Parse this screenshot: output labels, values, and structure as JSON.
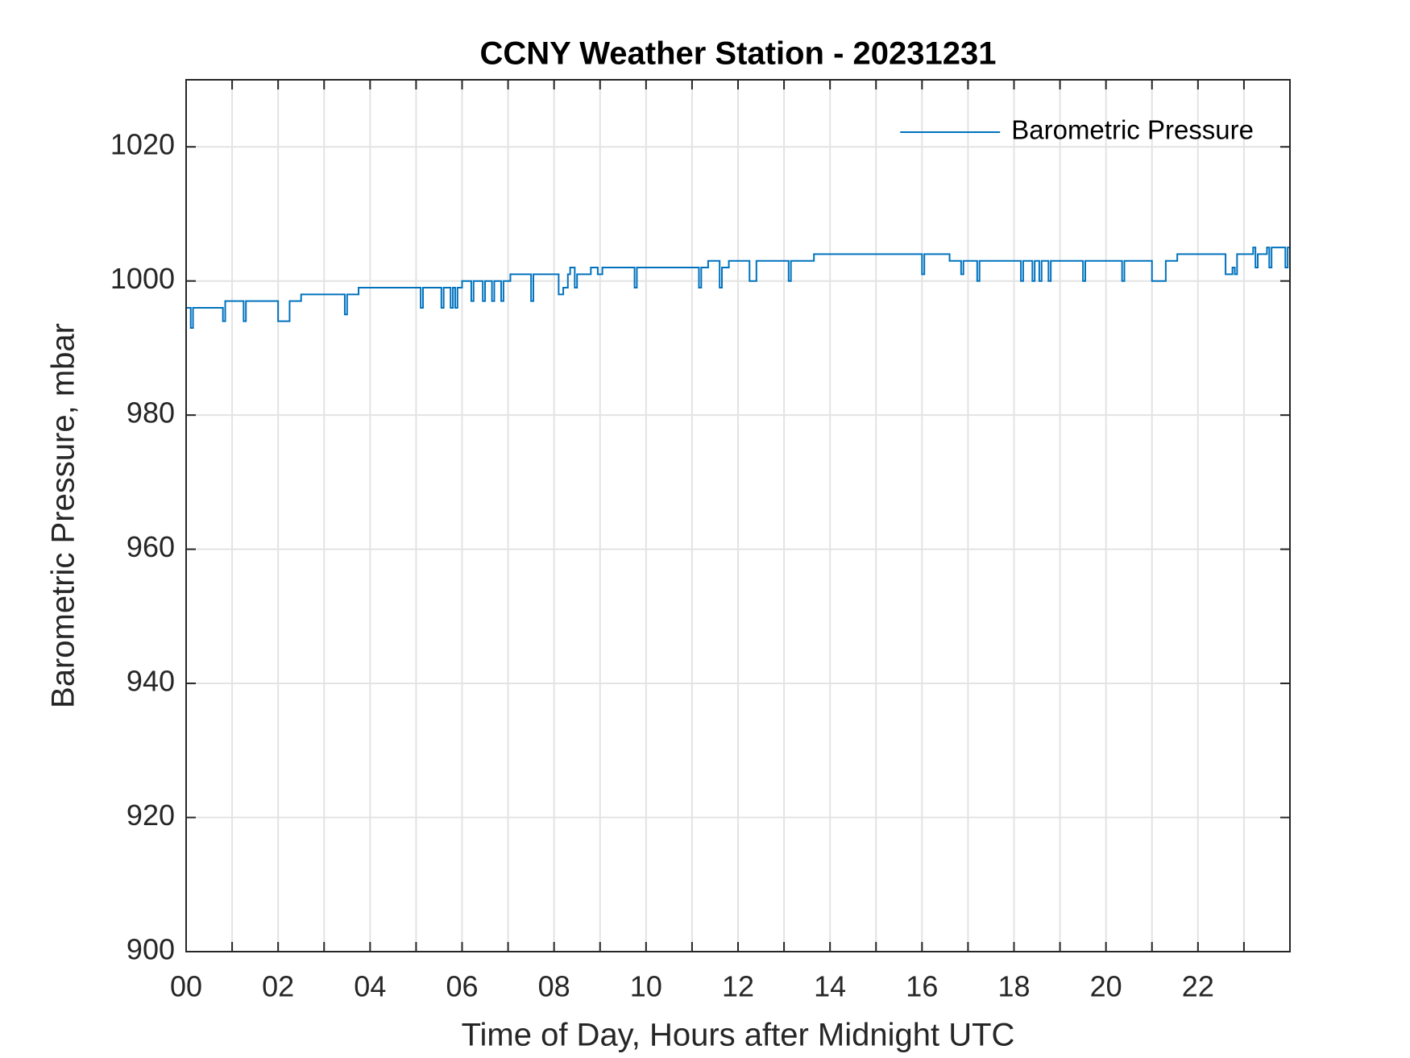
{
  "chart_data": {
    "type": "line",
    "title": "CCNY Weather Station - 20231231",
    "xlabel": "Time of Day, Hours after Midnight UTC",
    "ylabel": "Barometric Pressure, mbar",
    "xlim": [
      0,
      24
    ],
    "ylim": [
      900,
      1030
    ],
    "xticks": [
      {
        "value": 0,
        "label": "00"
      },
      {
        "value": 2,
        "label": "02"
      },
      {
        "value": 4,
        "label": "04"
      },
      {
        "value": 6,
        "label": "06"
      },
      {
        "value": 8,
        "label": "08"
      },
      10,
      12,
      14,
      16,
      18,
      20,
      22
    ],
    "xminorticks": [
      1,
      3,
      5,
      7,
      9,
      11,
      13,
      15,
      17,
      19,
      21,
      23
    ],
    "yticks": [
      900,
      920,
      940,
      960,
      980,
      1000,
      1020
    ],
    "grid": true,
    "legend": "northeast",
    "series": [
      {
        "name": "Barometric Pressure",
        "color": "#0072bd",
        "x": [
          0,
          0.1,
          0.1,
          0.15,
          0.15,
          0.8,
          0.8,
          0.85,
          0.85,
          1.25,
          1.25,
          1.3,
          1.3,
          2.0,
          2.0,
          2.25,
          2.25,
          2.5,
          2.5,
          3.45,
          3.45,
          3.5,
          3.5,
          3.75,
          3.75,
          5.1,
          5.1,
          5.15,
          5.15,
          5.55,
          5.55,
          5.6,
          5.6,
          5.75,
          5.75,
          5.8,
          5.8,
          5.85,
          5.85,
          5.9,
          5.9,
          6.0,
          6.0,
          6.2,
          6.2,
          6.25,
          6.25,
          6.45,
          6.45,
          6.5,
          6.5,
          6.65,
          6.65,
          6.7,
          6.7,
          6.85,
          6.85,
          6.9,
          6.9,
          7.05,
          7.05,
          7.5,
          7.5,
          7.55,
          7.55,
          8.1,
          8.1,
          8.2,
          8.2,
          8.3,
          8.3,
          8.35,
          8.35,
          8.45,
          8.45,
          8.5,
          8.5,
          8.8,
          8.8,
          8.95,
          8.95,
          9.05,
          9.05,
          9.75,
          9.75,
          9.8,
          9.8,
          11.15,
          11.15,
          11.2,
          11.2,
          11.35,
          11.35,
          11.6,
          11.6,
          11.65,
          11.65,
          11.8,
          11.8,
          12.25,
          12.25,
          12.4,
          12.4,
          13.1,
          13.1,
          13.15,
          13.15,
          13.65,
          13.65,
          16.0,
          16.0,
          16.05,
          16.05,
          16.6,
          16.6,
          16.85,
          16.85,
          16.9,
          16.9,
          17.2,
          17.2,
          17.25,
          17.25,
          18.15,
          18.15,
          18.2,
          18.2,
          18.4,
          18.4,
          18.45,
          18.45,
          18.55,
          18.55,
          18.6,
          18.6,
          18.75,
          18.75,
          18.8,
          18.8,
          19.5,
          19.5,
          19.55,
          19.55,
          20.35,
          20.35,
          20.4,
          20.4,
          21.0,
          21.0,
          21.3,
          21.3,
          21.55,
          21.55,
          22.6,
          22.6,
          22.75,
          22.75,
          22.8,
          22.8,
          22.85,
          22.85,
          23.2,
          23.2,
          23.25,
          23.25,
          23.3,
          23.3,
          23.5,
          23.5,
          23.55,
          23.55,
          23.6,
          23.6,
          23.9,
          23.9,
          23.95,
          23.95,
          24.0
        ],
        "values": [
          996,
          996,
          993,
          993,
          996,
          996,
          994,
          994,
          997,
          997,
          994,
          994,
          997,
          997,
          994,
          994,
          997,
          997,
          998,
          998,
          995,
          995,
          998,
          998,
          999,
          999,
          996,
          996,
          999,
          999,
          996,
          996,
          999,
          999,
          996,
          996,
          999,
          999,
          996,
          996,
          999,
          999,
          1000,
          1000,
          997,
          997,
          1000,
          1000,
          997,
          997,
          1000,
          1000,
          997,
          997,
          1000,
          1000,
          997,
          997,
          1000,
          1000,
          1001,
          1001,
          997,
          997,
          1001,
          1001,
          998,
          998,
          999,
          999,
          1001,
          1001,
          1002,
          1002,
          999,
          999,
          1001,
          1001,
          1002,
          1002,
          1001,
          1001,
          1002,
          1002,
          999,
          999,
          1002,
          1002,
          999,
          999,
          1002,
          1002,
          1003,
          1003,
          999,
          999,
          1002,
          1002,
          1003,
          1003,
          1000,
          1000,
          1003,
          1003,
          1000,
          1000,
          1003,
          1003,
          1004,
          1004,
          1001,
          1001,
          1004,
          1004,
          1003,
          1003,
          1001,
          1001,
          1003,
          1003,
          1000,
          1000,
          1003,
          1003,
          1000,
          1000,
          1003,
          1003,
          1000,
          1000,
          1003,
          1003,
          1000,
          1000,
          1003,
          1003,
          1000,
          1000,
          1003,
          1003,
          1000,
          1000,
          1003,
          1003,
          1000,
          1000,
          1003,
          1003,
          1000,
          1000,
          1003,
          1003,
          1004,
          1004,
          1001,
          1001,
          1002,
          1002,
          1001,
          1001,
          1004,
          1004,
          1005,
          1005,
          1002,
          1002,
          1004,
          1004,
          1005,
          1005,
          1002,
          1002,
          1005,
          1005,
          1002,
          1002,
          1005,
          1005
        ]
      }
    ]
  }
}
